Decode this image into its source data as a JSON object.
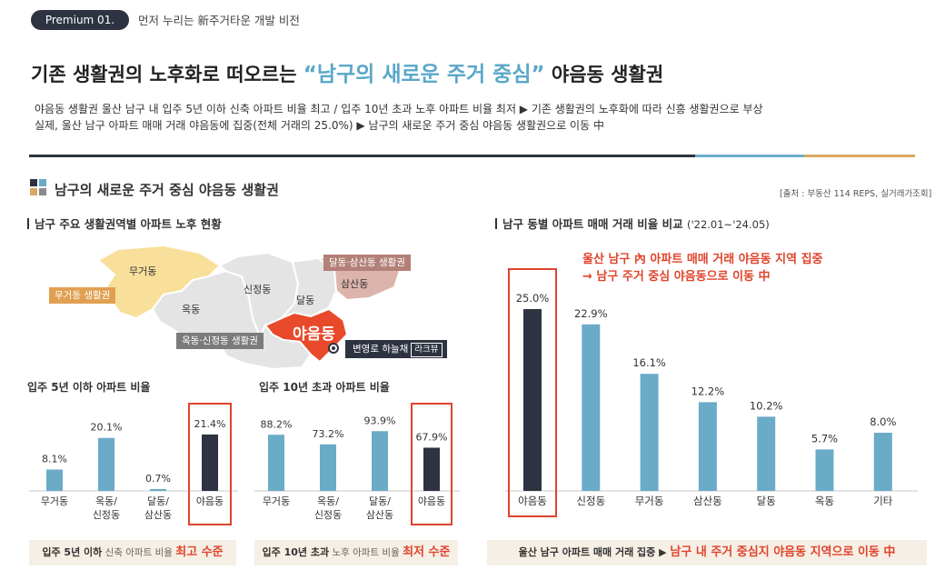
{
  "header": {
    "badge": "Premium 01.",
    "tagline": "먼저 누리는 新주거타운 개발 비전",
    "headline_before": "기존 생활권의 노후화로 떠오르는 ",
    "headline_highlight": "“남구의 새로운 주거 중심”",
    "headline_after": " 야음동 생활권",
    "summary_line1": "야음동 생활권 울산 남구 내 입주 5년 이하 신축 아파트 비율 최고 / 입주 10년 초과 노후 아파트 비율 최저 ▶ 기존 생활권의 노후화에 따라 신흥 생활권으로 부상",
    "summary_line2": "실제, 울산 남구 아파트 매매 거래 야음동에 집중(전체 거래의 25.0%) ▶ 남구의 새로운 주거 중심 야음동 생활권으로 이동 中"
  },
  "section": {
    "title": "남구의 새로운 주거 중심 야음동 생활권",
    "source": "[출처 : 부동산 114 REPS, 실거래가조회]"
  },
  "left_panel": {
    "title": "남구 주요 생활권역별 아파트 노후 현황"
  },
  "right_panel": {
    "title": "남구 동별 아파트 매매 거래 비율 비교",
    "period": "('22.01~'24.05)",
    "callout_line1": "울산 남구 內 아파트 매매 거래 야음동 지역 집중",
    "callout_line2": "→ 남구 주거 중심 야음동으로 이동 中"
  },
  "map": {
    "regions": {
      "mugeo": "무거동",
      "okdong": "옥동",
      "sinjeong": "신정동",
      "samsan": "삼산동",
      "dal": "달동",
      "yaeum": "야음동"
    },
    "tags": {
      "mugeo_area": "무거동 생활권",
      "dal_samsan_area": "달동·삼산동 생활권",
      "ok_sinjeong_area": "옥동·신정동 생활권"
    },
    "marker_label": "변영로 하늘채",
    "marker_sub": "라크뷰"
  },
  "banners": {
    "new_ratio": {
      "bold": "입주 5년 이하",
      "dim": " 신축 아파트 비율 ",
      "em": "최고 수준"
    },
    "old_ratio": {
      "bold": "입주 10년 초과",
      "dim": " 노후 아파트 비율 ",
      "em": "최저 수준"
    },
    "trade": {
      "bold": "울산 남구 아파트 매매 거래 집중 ▶ ",
      "em": "남구 내 주거 중심지 야음동 지역으로 이동 中"
    }
  },
  "colors": {
    "bar_blue": "#6aabc8",
    "bar_dark": "#2d3340",
    "highlight_red": "#e0442c",
    "map_gold": "#f8df9a",
    "map_gray": "#e4e4e4",
    "map_rose": "#dcb4ac",
    "map_red": "#e8492a"
  },
  "chart_data": [
    {
      "type": "bar",
      "title": "입주 5년 이하 아파트 비율",
      "categories": [
        "무거동",
        "옥동/\n신정동",
        "달동/\n삼산동",
        "야음동"
      ],
      "values": [
        8.1,
        20.1,
        0.7,
        21.4
      ],
      "labels": [
        "8.1%",
        "20.1%",
        "0.7%",
        "21.4%"
      ],
      "highlight": "야음동"
    },
    {
      "type": "bar",
      "title": "입주 10년 초과 아파트 비율",
      "categories": [
        "무거동",
        "옥동/\n신정동",
        "달동/\n삼산동",
        "야음동"
      ],
      "values": [
        88.2,
        73.2,
        93.9,
        67.9
      ],
      "labels": [
        "88.2%",
        "73.2%",
        "93.9%",
        "67.9%"
      ],
      "highlight": "야음동"
    },
    {
      "type": "bar",
      "title": "남구 동별 아파트 매매 거래 비율 비교",
      "categories": [
        "야음동",
        "신정동",
        "무거동",
        "삼산동",
        "달동",
        "옥동",
        "기타"
      ],
      "values": [
        25.0,
        22.9,
        16.1,
        12.2,
        10.2,
        5.7,
        8.0
      ],
      "labels": [
        "25.0%",
        "22.9%",
        "16.1%",
        "12.2%",
        "10.2%",
        "5.7%",
        "8.0%"
      ],
      "highlight": "야음동"
    }
  ]
}
